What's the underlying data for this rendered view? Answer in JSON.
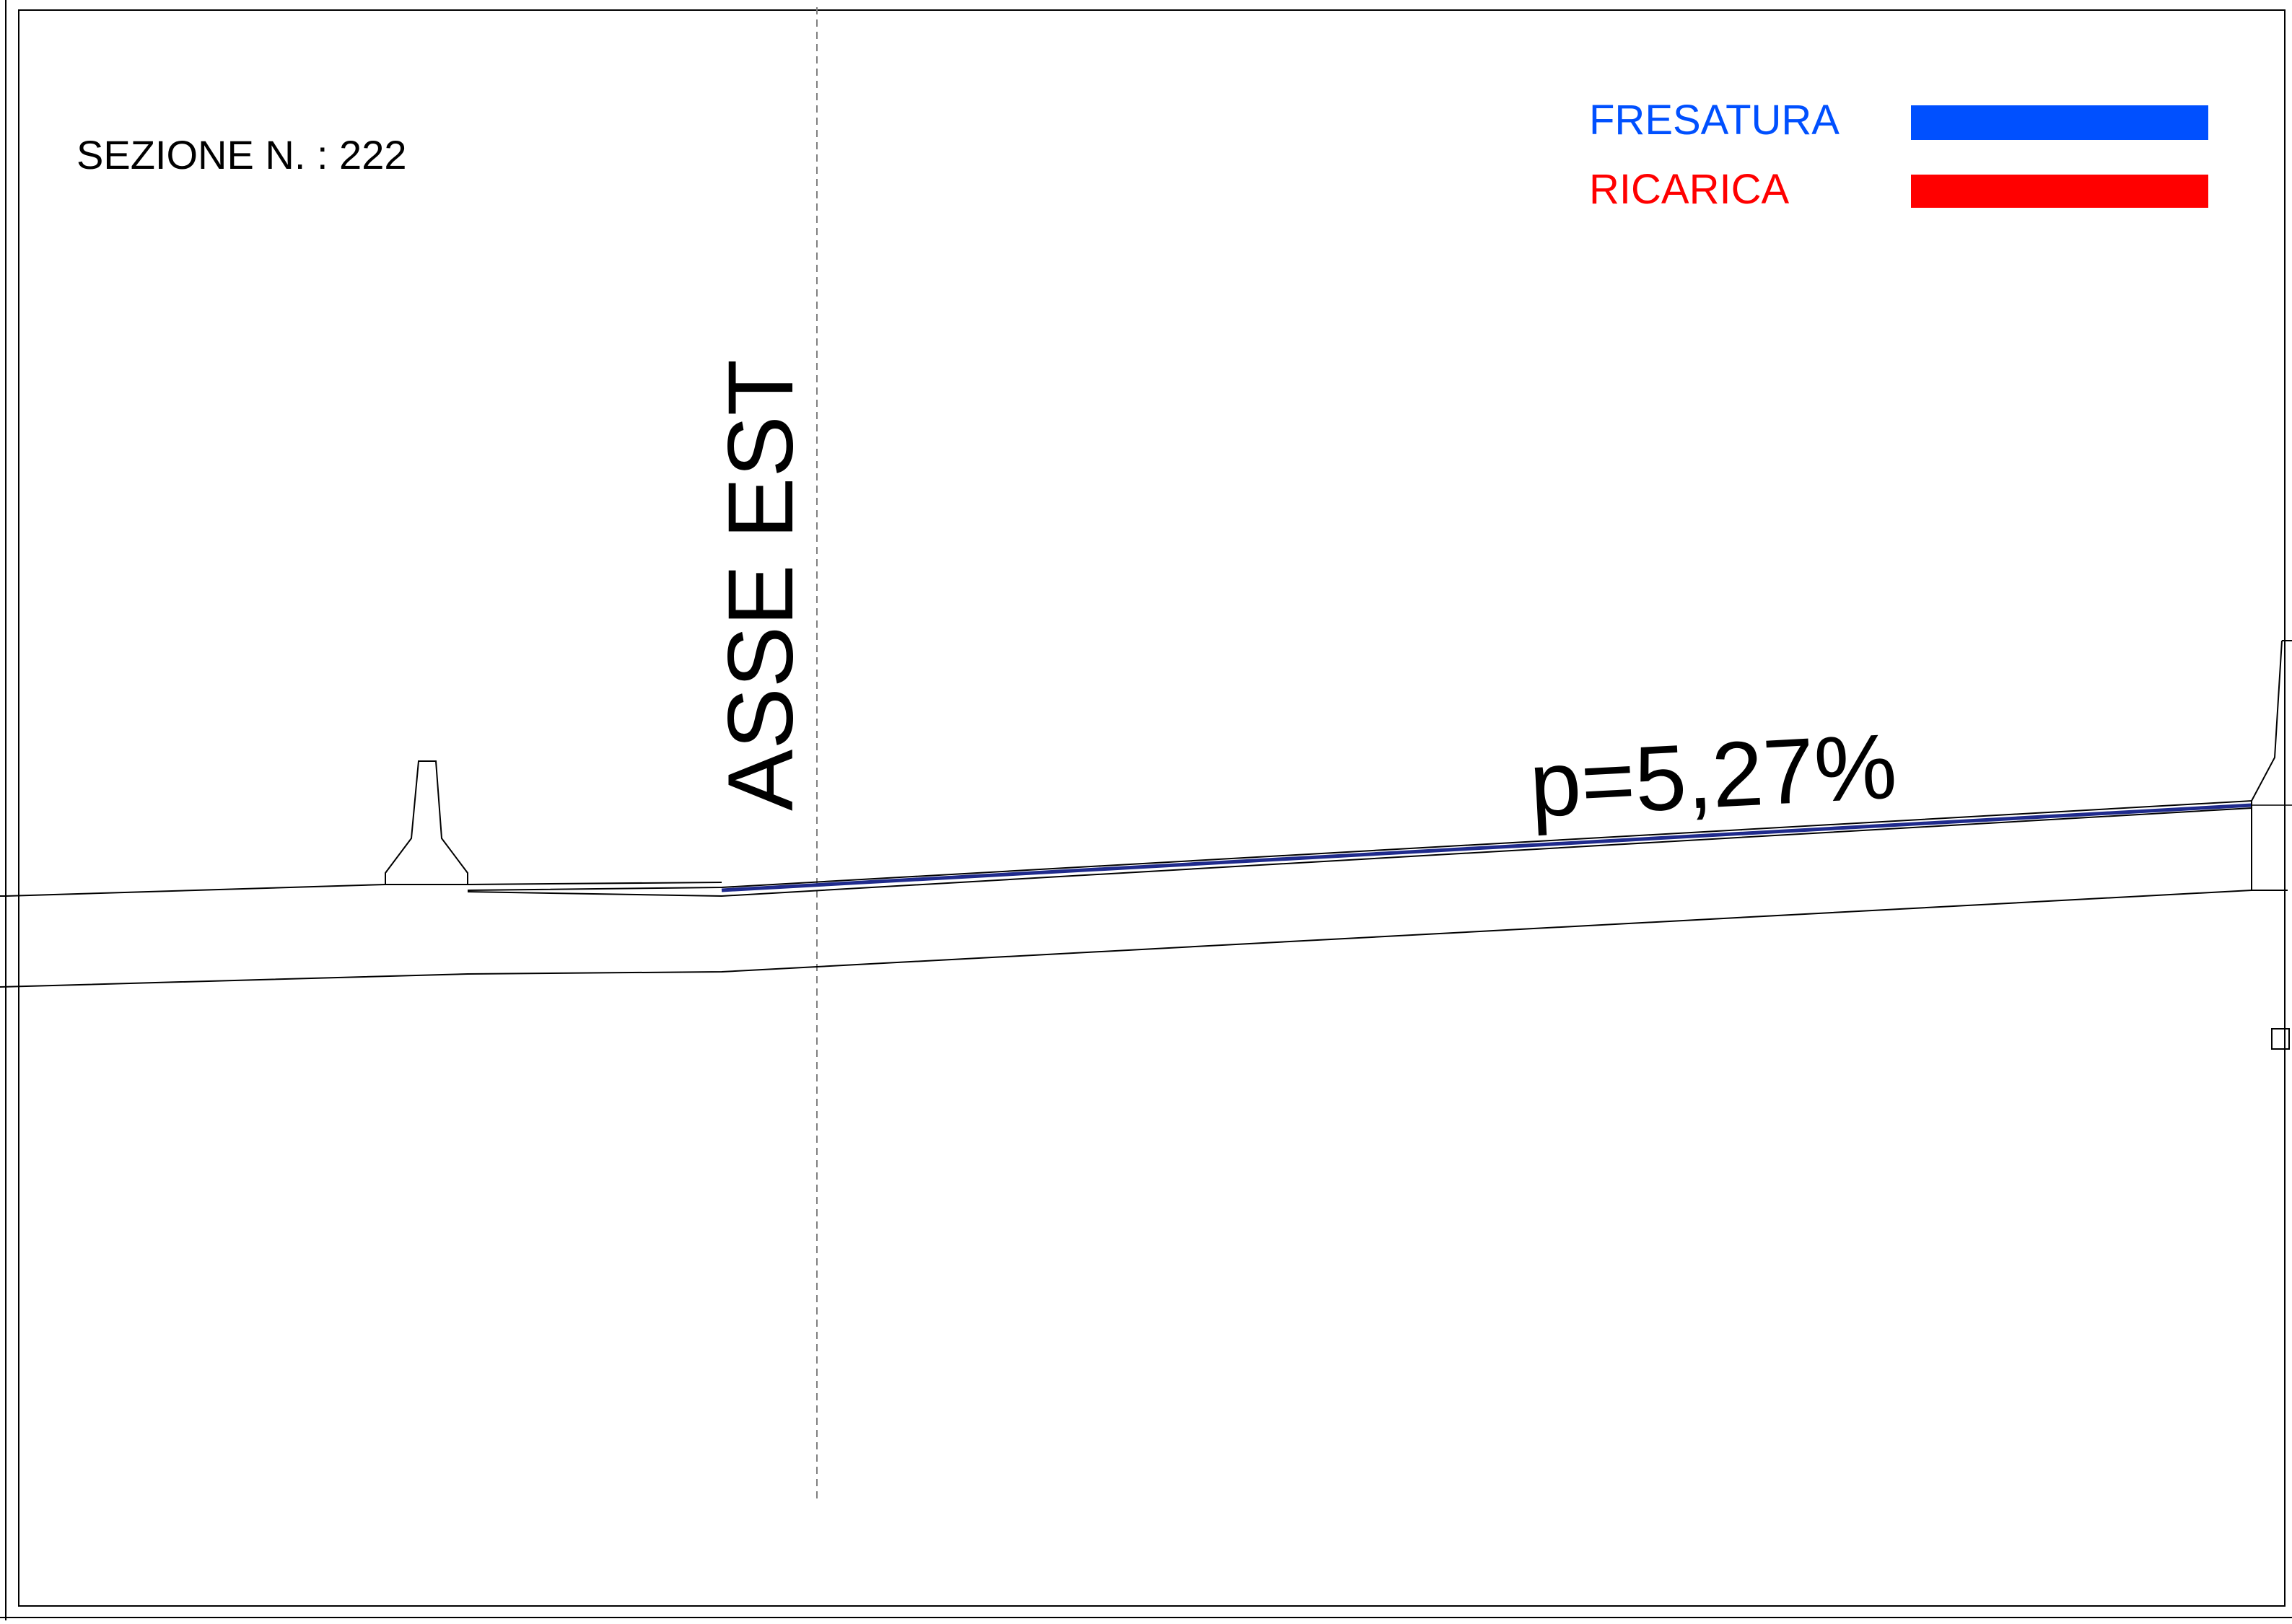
{
  "section": {
    "label": "SEZIONE N. : 222"
  },
  "legend": {
    "items": [
      {
        "label": "FRESATURA",
        "color": "#0050ff"
      },
      {
        "label": "RICARICA",
        "color": "#ff0000"
      }
    ]
  },
  "axis": {
    "label": "ASSE EST"
  },
  "slope": {
    "label": "p=5,27%"
  },
  "colors": {
    "line": "#000000",
    "axis_dash": "#808080",
    "milling_stroke": "#1f2a8c"
  }
}
